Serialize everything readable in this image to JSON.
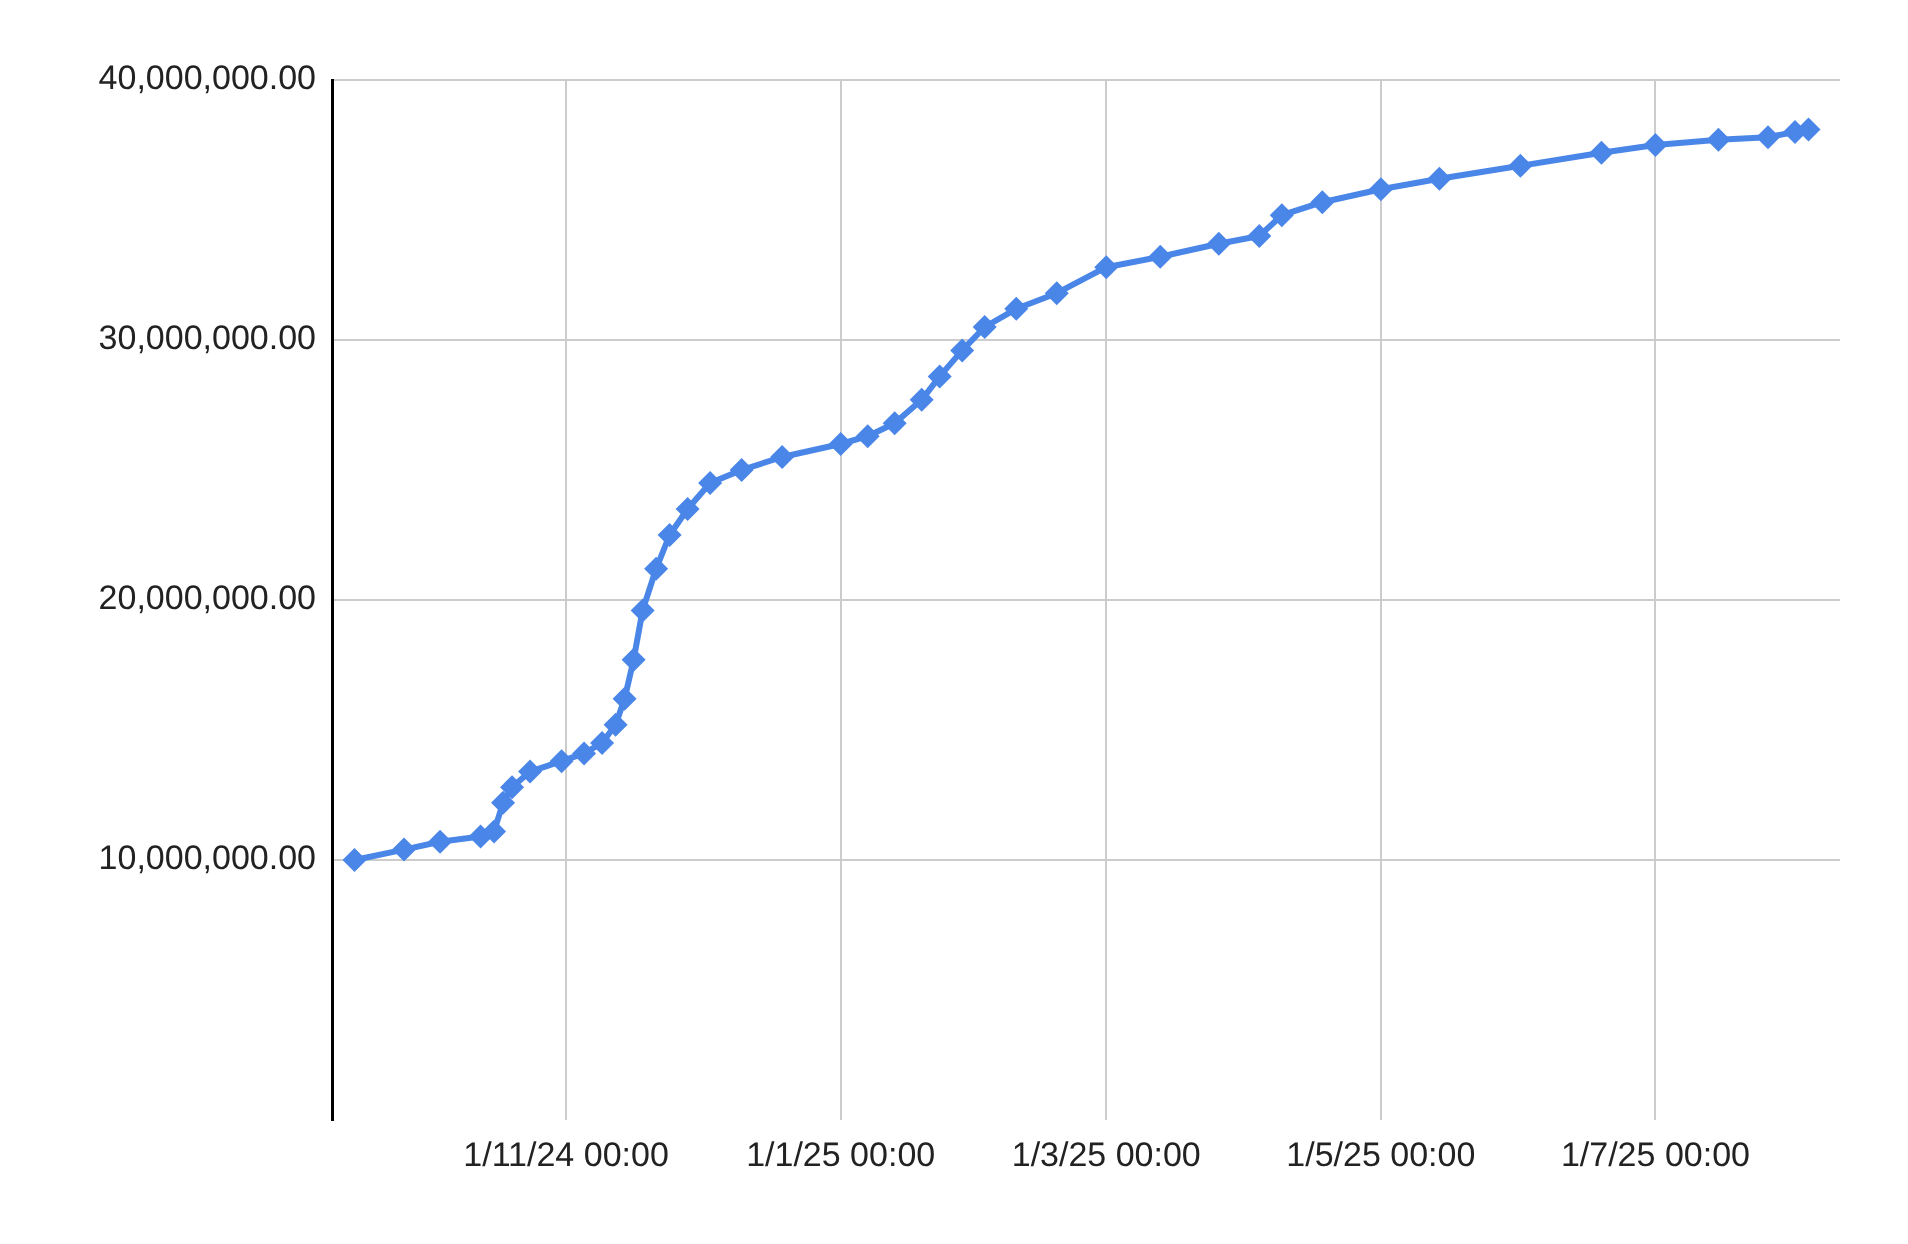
{
  "chart_data": {
    "type": "line",
    "x": [
      "2024-09-15",
      "2024-09-26",
      "2024-10-04",
      "2024-10-13",
      "2024-10-16",
      "2024-10-18",
      "2024-10-20",
      "2024-10-24",
      "2024-10-31",
      "2024-11-05",
      "2024-11-09",
      "2024-11-12",
      "2024-11-14",
      "2024-11-16",
      "2024-11-18",
      "2024-11-21",
      "2024-11-24",
      "2024-11-28",
      "2024-12-03",
      "2024-12-10",
      "2024-12-19",
      "2025-01-01",
      "2025-01-07",
      "2025-01-13",
      "2025-01-19",
      "2025-01-23",
      "2025-01-28",
      "2025-02-02",
      "2025-02-09",
      "2025-02-18",
      "2025-03-01",
      "2025-03-13",
      "2025-03-26",
      "2025-04-04",
      "2025-04-09",
      "2025-04-18",
      "2025-05-01",
      "2025-05-14",
      "2025-06-01",
      "2025-06-19",
      "2025-07-01",
      "2025-07-15",
      "2025-07-26",
      "2025-08-01",
      "2025-08-04"
    ],
    "series": [
      {
        "color": "#4a86e8",
        "values": [
          10000000,
          10400000,
          10700000,
          10900000,
          11100000,
          12200000,
          12800000,
          13400000,
          13800000,
          14100000,
          14500000,
          15200000,
          16200000,
          17700000,
          19600000,
          21200000,
          22500000,
          23500000,
          24500000,
          25000000,
          25500000,
          26000000,
          26300000,
          26800000,
          27700000,
          28600000,
          29600000,
          30500000,
          31200000,
          31800000,
          32800000,
          33200000,
          33700000,
          34000000,
          34800000,
          35300000,
          35800000,
          36200000,
          36700000,
          37200000,
          37500000,
          37700000,
          37800000,
          38000000,
          38100000
        ]
      }
    ],
    "xlim": [
      "2024-09-10",
      "2025-08-11"
    ],
    "xticks": [
      {
        "value": "2024-11-01",
        "label": "1/11/24 00:00"
      },
      {
        "value": "2025-01-01",
        "label": "1/1/25 00:00"
      },
      {
        "value": "2025-03-01",
        "label": "1/3/25 00:00"
      },
      {
        "value": "2025-05-01",
        "label": "1/5/25 00:00"
      },
      {
        "value": "2025-07-01",
        "label": "1/7/25 00:00"
      }
    ],
    "ylim": [
      0,
      40000000
    ],
    "yticks": [
      {
        "value": 10000000,
        "label": "10,000,000.00"
      },
      {
        "value": 20000000,
        "label": "20,000,000.00"
      },
      {
        "value": 30000000,
        "label": "30,000,000.00"
      },
      {
        "value": 40000000,
        "label": "40,000,000.00"
      }
    ],
    "grid": true,
    "legend": false,
    "marker": "diamond",
    "line_style": "solid"
  }
}
